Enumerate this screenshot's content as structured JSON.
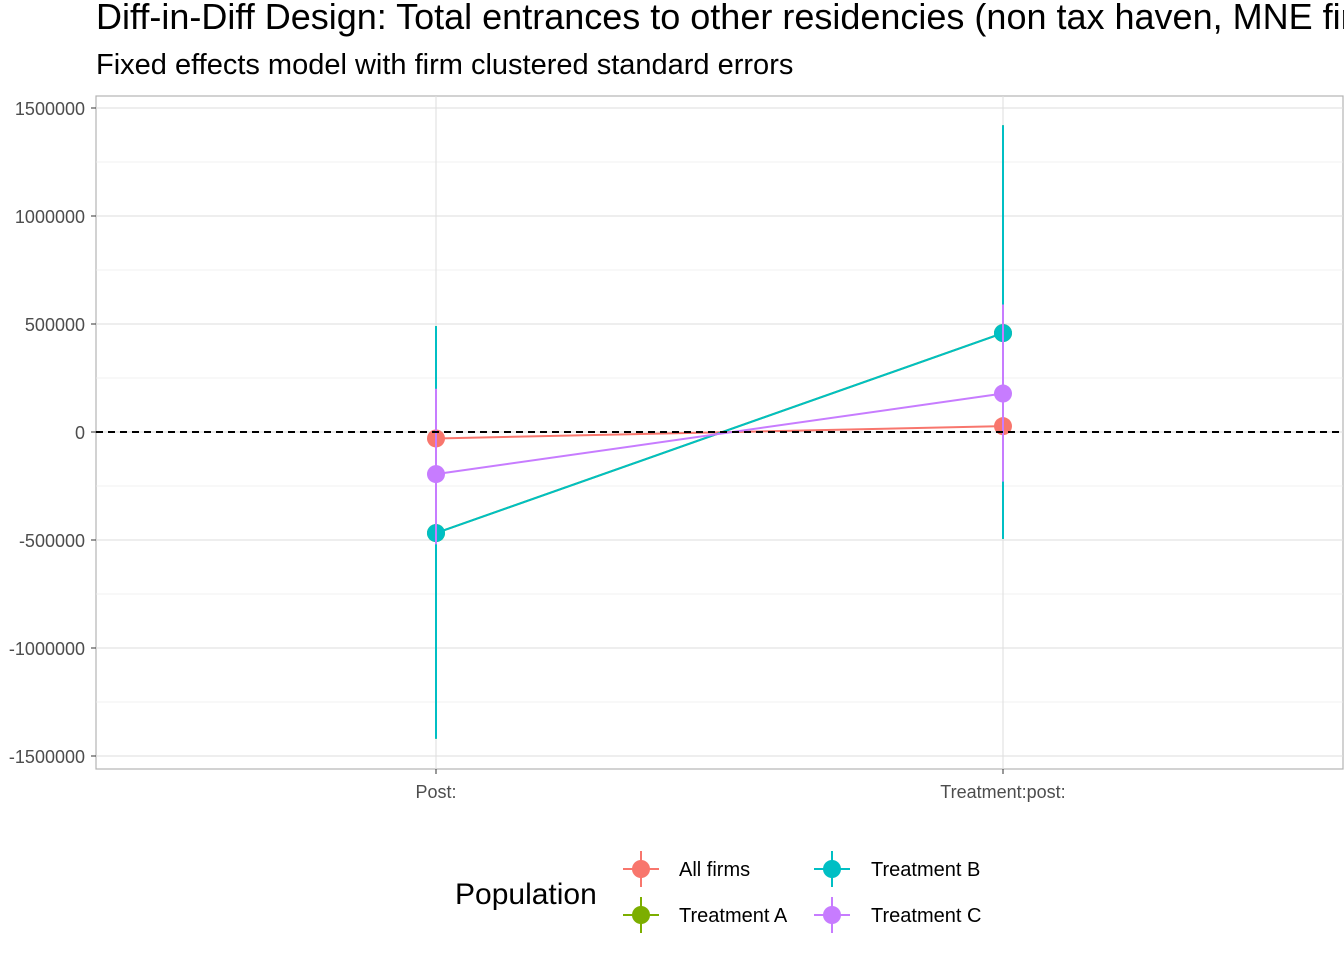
{
  "chart_data": {
    "type": "scatter",
    "title": "Diff-in-Diff Design: Total entrances to other residencies (non tax haven, MNE firms)",
    "subtitle": "Fixed effects model with firm clustered standard errors",
    "xlabel": "",
    "ylabel": "",
    "categories": [
      "Post:",
      "Treatment:post:"
    ],
    "ylim": [
      -1560000,
      1560000
    ],
    "y_ticks": [
      -1500000,
      -1000000,
      -500000,
      0,
      500000,
      1000000,
      1500000
    ],
    "y_tick_labels": [
      "-1500000",
      "-1000000",
      "-500000",
      "0",
      "500000",
      "1000000",
      "1500000"
    ],
    "reference_line": {
      "y": 0,
      "style": "dashed",
      "color": "#000000"
    },
    "grid": true,
    "legend": {
      "title": "Population",
      "position": "bottom"
    },
    "series": [
      {
        "name": "All firms",
        "color": "#F8766D",
        "estimates": [
          -30000,
          27000
        ],
        "ci_low": [
          -30000,
          27000
        ],
        "ci_high": [
          -30000,
          27000
        ]
      },
      {
        "name": "Treatment A",
        "color": "#7CAE00",
        "estimates": [
          -468000,
          458000
        ],
        "ci_low": [
          -1420000,
          -495000
        ],
        "ci_high": [
          490000,
          1420000
        ]
      },
      {
        "name": "Treatment B",
        "color": "#00BFC4",
        "estimates": [
          -468000,
          458000
        ],
        "ci_low": [
          -1420000,
          -495000
        ],
        "ci_high": [
          490000,
          1420000
        ]
      },
      {
        "name": "Treatment C",
        "color": "#C77CFF",
        "estimates": [
          -195000,
          178000
        ],
        "ci_low": [
          -520000,
          -230000
        ],
        "ci_high": [
          200000,
          590000
        ]
      }
    ]
  }
}
